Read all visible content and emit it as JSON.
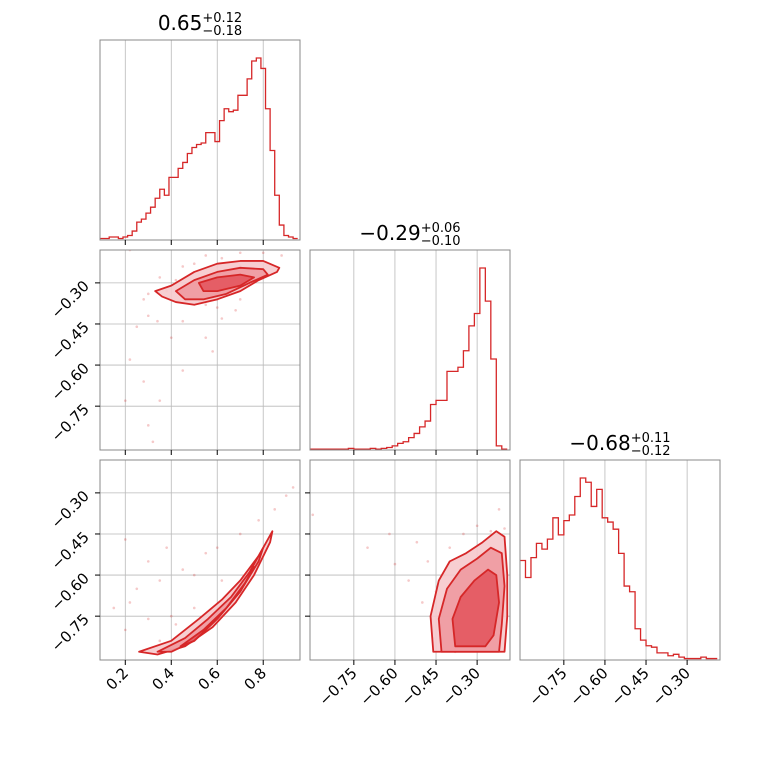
{
  "chart_data": {
    "type": "corner",
    "color": "#d62728",
    "grid": true,
    "parameters": [
      {
        "median": "0.65",
        "plus": "+0.12",
        "minus": "−0.18",
        "range": [
          0.09,
          0.96
        ],
        "ticks": [
          0.2,
          0.4,
          0.6,
          0.8
        ],
        "tick_labels": [
          "0.2",
          "0.4",
          "0.6",
          "0.8"
        ]
      },
      {
        "median": "−0.29",
        "plus": "+0.06",
        "minus": "−0.10",
        "range": [
          -0.91,
          -0.18
        ],
        "ticks": [
          -0.75,
          -0.6,
          -0.45,
          -0.3
        ],
        "tick_labels": [
          "−0.75",
          "−0.60",
          "−0.45",
          "−0.30"
        ]
      },
      {
        "median": "−0.68",
        "plus": "+0.11",
        "minus": "−0.12",
        "range": [
          -0.91,
          -0.18
        ],
        "ticks": [
          -0.75,
          -0.6,
          -0.45,
          -0.3
        ],
        "tick_labels": [
          "−0.75",
          "−0.60",
          "−0.45",
          "−0.30"
        ]
      }
    ],
    "histograms": [
      {
        "x": [
          0.1,
          0.12,
          0.14,
          0.16,
          0.18,
          0.2,
          0.22,
          0.24,
          0.26,
          0.28,
          0.3,
          0.32,
          0.34,
          0.36,
          0.38,
          0.4,
          0.42,
          0.44,
          0.46,
          0.48,
          0.5,
          0.52,
          0.54,
          0.56,
          0.58,
          0.6,
          0.62,
          0.64,
          0.66,
          0.68,
          0.7,
          0.72,
          0.74,
          0.76,
          0.78,
          0.8,
          0.82,
          0.84,
          0.86,
          0.88,
          0.9,
          0.92,
          0.94
        ],
        "counts": [
          1,
          1,
          2,
          2,
          1,
          2,
          3,
          6,
          12,
          14,
          18,
          22,
          28,
          34,
          30,
          42,
          42,
          48,
          52,
          58,
          62,
          64,
          65,
          72,
          72,
          66,
          80,
          88,
          86,
          87,
          97,
          97,
          108,
          120,
          122,
          115,
          88,
          60,
          30,
          10,
          3,
          2,
          1
        ]
      },
      {
        "x": [
          -0.9,
          -0.88,
          -0.86,
          -0.84,
          -0.82,
          -0.8,
          -0.78,
          -0.76,
          -0.74,
          -0.72,
          -0.7,
          -0.68,
          -0.66,
          -0.64,
          -0.62,
          -0.6,
          -0.58,
          -0.56,
          -0.54,
          -0.52,
          -0.5,
          -0.48,
          -0.46,
          -0.44,
          -0.42,
          -0.4,
          -0.38,
          -0.36,
          -0.34,
          -0.32,
          -0.3,
          -0.28,
          -0.26,
          -0.24,
          -0.22,
          -0.2
        ],
        "counts": [
          1,
          1,
          1,
          1,
          1,
          1,
          1,
          2,
          1,
          1,
          1,
          2,
          1,
          2,
          3,
          5,
          8,
          10,
          15,
          20,
          28,
          35,
          55,
          60,
          60,
          95,
          95,
          100,
          120,
          150,
          165,
          220,
          180,
          110,
          5,
          1
        ]
      },
      {
        "x": [
          -0.9,
          -0.88,
          -0.86,
          -0.84,
          -0.82,
          -0.8,
          -0.78,
          -0.76,
          -0.74,
          -0.72,
          -0.7,
          -0.68,
          -0.66,
          -0.64,
          -0.62,
          -0.6,
          -0.58,
          -0.56,
          -0.54,
          -0.52,
          -0.5,
          -0.48,
          -0.46,
          -0.44,
          -0.42,
          -0.4,
          -0.38,
          -0.36,
          -0.34,
          -0.32,
          -0.3,
          -0.28,
          -0.26,
          -0.24,
          -0.22,
          -0.2
        ],
        "counts": [
          70,
          58,
          72,
          82,
          78,
          85,
          100,
          88,
          98,
          102,
          115,
          128,
          125,
          108,
          120,
          100,
          97,
          92,
          75,
          52,
          48,
          22,
          14,
          10,
          9,
          5,
          5,
          3,
          4,
          2,
          1,
          1,
          1,
          2,
          1,
          1
        ]
      }
    ],
    "pairs": [
      {
        "x_param": 0,
        "y_param": 1,
        "points": [
          [
            0.22,
            -0.18
          ],
          [
            0.55,
            -0.2
          ],
          [
            0.62,
            -0.21
          ],
          [
            0.7,
            -0.19
          ],
          [
            0.8,
            -0.19
          ],
          [
            0.88,
            -0.2
          ],
          [
            0.45,
            -0.24
          ],
          [
            0.5,
            -0.23
          ],
          [
            0.6,
            -0.24
          ],
          [
            0.7,
            -0.24
          ],
          [
            0.35,
            -0.28
          ],
          [
            0.42,
            -0.29
          ],
          [
            0.58,
            -0.27
          ],
          [
            0.66,
            -0.3
          ],
          [
            0.75,
            -0.28
          ],
          [
            0.3,
            -0.34
          ],
          [
            0.38,
            -0.33
          ],
          [
            0.5,
            -0.35
          ],
          [
            0.6,
            -0.36
          ],
          [
            0.7,
            -0.36
          ],
          [
            0.28,
            -0.36
          ],
          [
            0.55,
            -0.38
          ],
          [
            0.6,
            -0.39
          ],
          [
            0.68,
            -0.4
          ],
          [
            0.3,
            -0.42
          ],
          [
            0.34,
            -0.44
          ],
          [
            0.45,
            -0.44
          ],
          [
            0.62,
            -0.43
          ],
          [
            0.25,
            -0.46
          ],
          [
            0.4,
            -0.5
          ],
          [
            0.55,
            -0.5
          ],
          [
            0.58,
            -0.55
          ],
          [
            0.22,
            -0.58
          ],
          [
            0.45,
            -0.62
          ],
          [
            0.28,
            -0.66
          ],
          [
            0.2,
            -0.73
          ],
          [
            0.35,
            -0.73
          ],
          [
            0.3,
            -0.82
          ],
          [
            0.32,
            -0.88
          ]
        ],
        "contours": [
          {
            "level": "outer",
            "points": [
              [
                0.33,
                -0.33
              ],
              [
                0.4,
                -0.31
              ],
              [
                0.5,
                -0.26
              ],
              [
                0.6,
                -0.23
              ],
              [
                0.7,
                -0.22
              ],
              [
                0.8,
                -0.22
              ],
              [
                0.87,
                -0.245
              ],
              [
                0.86,
                -0.26
              ],
              [
                0.78,
                -0.29
              ],
              [
                0.7,
                -0.33
              ],
              [
                0.6,
                -0.36
              ],
              [
                0.5,
                -0.38
              ],
              [
                0.42,
                -0.37
              ],
              [
                0.36,
                -0.35
              ]
            ]
          },
          {
            "level": "mid",
            "points": [
              [
                0.42,
                -0.33
              ],
              [
                0.5,
                -0.29
              ],
              [
                0.6,
                -0.26
              ],
              [
                0.7,
                -0.245
              ],
              [
                0.8,
                -0.25
              ],
              [
                0.82,
                -0.27
              ],
              [
                0.74,
                -0.3
              ],
              [
                0.64,
                -0.34
              ],
              [
                0.54,
                -0.36
              ],
              [
                0.46,
                -0.36
              ]
            ]
          },
          {
            "level": "inner",
            "points": [
              [
                0.52,
                -0.3
              ],
              [
                0.6,
                -0.28
              ],
              [
                0.7,
                -0.27
              ],
              [
                0.76,
                -0.28
              ],
              [
                0.7,
                -0.31
              ],
              [
                0.6,
                -0.33
              ],
              [
                0.54,
                -0.33
              ]
            ]
          }
        ]
      },
      {
        "x_param": 0,
        "y_param": 2,
        "points": [
          [
            0.15,
            -0.72
          ],
          [
            0.2,
            -0.8
          ],
          [
            0.25,
            -0.65
          ],
          [
            0.3,
            -0.55
          ],
          [
            0.35,
            -0.62
          ],
          [
            0.4,
            -0.75
          ],
          [
            0.45,
            -0.58
          ],
          [
            0.5,
            -0.6
          ],
          [
            0.55,
            -0.52
          ],
          [
            0.6,
            -0.5
          ],
          [
            0.7,
            -0.45
          ],
          [
            0.78,
            -0.4
          ],
          [
            0.85,
            -0.36
          ],
          [
            0.9,
            -0.31
          ],
          [
            0.93,
            -0.28
          ],
          [
            0.62,
            -0.62
          ],
          [
            0.5,
            -0.72
          ],
          [
            0.42,
            -0.78
          ],
          [
            0.3,
            -0.76
          ],
          [
            0.22,
            -0.7
          ],
          [
            0.35,
            -0.84
          ],
          [
            0.2,
            -0.47
          ],
          [
            0.38,
            -0.5
          ]
        ],
        "contours": [
          {
            "level": "outer",
            "points": [
              [
                0.26,
                -0.88
              ],
              [
                0.4,
                -0.84
              ],
              [
                0.52,
                -0.76
              ],
              [
                0.62,
                -0.69
              ],
              [
                0.7,
                -0.62
              ],
              [
                0.78,
                -0.53
              ],
              [
                0.84,
                -0.44
              ],
              [
                0.83,
                -0.48
              ],
              [
                0.76,
                -0.6
              ],
              [
                0.68,
                -0.7
              ],
              [
                0.58,
                -0.79
              ],
              [
                0.46,
                -0.86
              ],
              [
                0.34,
                -0.89
              ]
            ]
          },
          {
            "level": "mid",
            "points": [
              [
                0.34,
                -0.88
              ],
              [
                0.46,
                -0.83
              ],
              [
                0.56,
                -0.76
              ],
              [
                0.66,
                -0.68
              ],
              [
                0.74,
                -0.59
              ],
              [
                0.8,
                -0.5
              ],
              [
                0.78,
                -0.55
              ],
              [
                0.7,
                -0.66
              ],
              [
                0.6,
                -0.76
              ],
              [
                0.5,
                -0.84
              ],
              [
                0.4,
                -0.88
              ]
            ]
          },
          {
            "level": "inner",
            "points": [
              [
                0.44,
                -0.86
              ],
              [
                0.54,
                -0.8
              ],
              [
                0.64,
                -0.72
              ],
              [
                0.72,
                -0.63
              ],
              [
                0.76,
                -0.57
              ],
              [
                0.7,
                -0.66
              ],
              [
                0.6,
                -0.76
              ],
              [
                0.5,
                -0.84
              ]
            ]
          }
        ]
      },
      {
        "x_param": 1,
        "y_param": 2,
        "points": [
          [
            -0.9,
            -0.38
          ],
          [
            -0.7,
            -0.5
          ],
          [
            -0.62,
            -0.45
          ],
          [
            -0.6,
            -0.56
          ],
          [
            -0.55,
            -0.62
          ],
          [
            -0.52,
            -0.48
          ],
          [
            -0.5,
            -0.7
          ],
          [
            -0.48,
            -0.55
          ],
          [
            -0.46,
            -0.83
          ],
          [
            -0.45,
            -0.66
          ],
          [
            -0.42,
            -0.6
          ],
          [
            -0.44,
            -0.75
          ],
          [
            -0.38,
            -0.88
          ],
          [
            -0.25,
            -0.44
          ],
          [
            -0.22,
            -0.36
          ],
          [
            -0.2,
            -0.43
          ],
          [
            -0.24,
            -0.5
          ],
          [
            -0.3,
            -0.42
          ],
          [
            -0.35,
            -0.45
          ],
          [
            -0.4,
            -0.5
          ]
        ],
        "contours": [
          {
            "level": "outer",
            "points": [
              [
                -0.46,
                -0.88
              ],
              [
                -0.47,
                -0.75
              ],
              [
                -0.44,
                -0.62
              ],
              [
                -0.4,
                -0.55
              ],
              [
                -0.34,
                -0.52
              ],
              [
                -0.28,
                -0.48
              ],
              [
                -0.23,
                -0.44
              ],
              [
                -0.2,
                -0.46
              ],
              [
                -0.19,
                -0.6
              ],
              [
                -0.19,
                -0.75
              ],
              [
                -0.2,
                -0.88
              ]
            ]
          },
          {
            "level": "mid",
            "points": [
              [
                -0.43,
                -0.88
              ],
              [
                -0.44,
                -0.76
              ],
              [
                -0.41,
                -0.65
              ],
              [
                -0.36,
                -0.58
              ],
              [
                -0.3,
                -0.54
              ],
              [
                -0.25,
                -0.5
              ],
              [
                -0.21,
                -0.52
              ],
              [
                -0.2,
                -0.64
              ],
              [
                -0.21,
                -0.78
              ],
              [
                -0.22,
                -0.88
              ]
            ]
          },
          {
            "level": "inner",
            "points": [
              [
                -0.38,
                -0.86
              ],
              [
                -0.39,
                -0.76
              ],
              [
                -0.36,
                -0.68
              ],
              [
                -0.31,
                -0.62
              ],
              [
                -0.26,
                -0.58
              ],
              [
                -0.23,
                -0.6
              ],
              [
                -0.22,
                -0.7
              ],
              [
                -0.24,
                -0.82
              ],
              [
                -0.27,
                -0.86
              ]
            ]
          }
        ]
      }
    ]
  }
}
